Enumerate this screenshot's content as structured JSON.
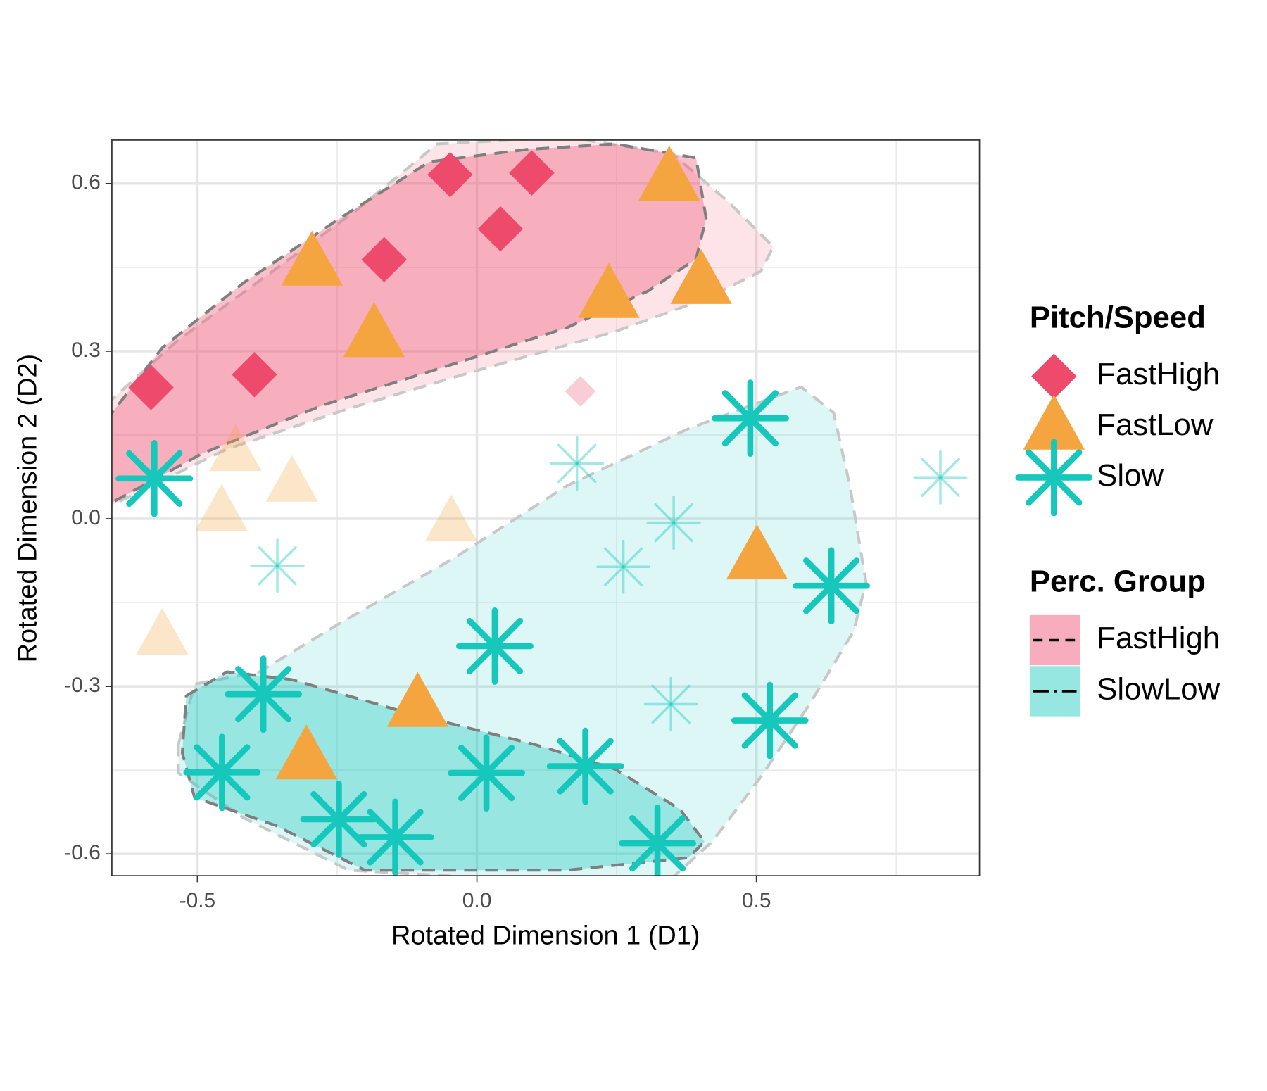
{
  "chart_data": {
    "type": "scatter",
    "x_label": "Rotated Dimension 1 (D1)",
    "y_label": "Rotated Dimension 2 (D2)",
    "xlim": [
      -0.653,
      0.899
    ],
    "ylim": [
      -0.639,
      0.678
    ],
    "xticks": [
      -0.5,
      {
        "value": 0,
        "label": "0.0"
      },
      0.5
    ],
    "yticks": [
      -0.6,
      -0.3,
      {
        "value": 0,
        "label": "0.0"
      },
      0.3,
      0.6
    ],
    "xminor": [
      -0.25,
      0.25,
      0.75
    ],
    "yminor": [
      -0.45,
      -0.15,
      0.15,
      0.45
    ],
    "grid": true,
    "legend_position": "right",
    "legend_title": "Pitch/Speed",
    "group_legend_title": "Perc. Group",
    "series": [
      {
        "name": "FastHigh",
        "shape": "diamond",
        "color": "#ee4a6c",
        "x": [
          -0.583,
          -0.398,
          -0.166,
          -0.048,
          0.042,
          0.098,
          0.185
        ],
        "values": [
          0.235,
          0.258,
          0.464,
          0.616,
          0.519,
          0.619,
          0.228
        ],
        "faded": [
          false,
          false,
          false,
          false,
          false,
          false,
          true
        ]
      },
      {
        "name": "FastLow",
        "shape": "triangle",
        "color": "#f5a540",
        "x": [
          -0.295,
          -0.184,
          0.344,
          0.236,
          0.401,
          0.501,
          -0.106,
          -0.305,
          -0.432,
          -0.331,
          -0.457,
          -0.046,
          -0.563
        ],
        "values": [
          0.458,
          0.33,
          0.61,
          0.4,
          0.425,
          -0.068,
          -0.332,
          -0.426,
          0.12,
          0.065,
          0.013,
          -0.006,
          -0.209
        ],
        "faded": [
          false,
          false,
          false,
          false,
          false,
          false,
          false,
          false,
          true,
          true,
          true,
          true,
          true
        ]
      },
      {
        "name": "Slow",
        "shape": "asterisk",
        "color": "#16c7bc",
        "x": [
          -0.577,
          0.489,
          0.634,
          0.032,
          -0.382,
          0.524,
          -0.456,
          -0.247,
          -0.146,
          0.017,
          0.194,
          0.323,
          0.179,
          0.829,
          0.352,
          0.262,
          -0.357,
          0.347
        ],
        "values": [
          0.072,
          0.18,
          -0.12,
          -0.228,
          -0.314,
          -0.361,
          -0.454,
          -0.538,
          -0.57,
          -0.455,
          -0.443,
          -0.581,
          0.099,
          0.074,
          -0.007,
          -0.086,
          -0.084,
          -0.332
        ],
        "faded": [
          false,
          false,
          false,
          false,
          false,
          false,
          false,
          false,
          false,
          false,
          false,
          false,
          true,
          true,
          true,
          true,
          true,
          true
        ]
      }
    ],
    "groups": [
      {
        "name": "FastHigh",
        "color": "#ee4a6c",
        "linetype": "dashed",
        "hulls": [
          {
            "x": [
              -0.664,
              -0.534,
              -0.375,
              -0.216,
              -0.071,
              0.161,
              0.349,
              0.45,
              0.53,
              0.508,
              0.407,
              0.247,
              0.016,
              -0.23,
              -0.447,
              -0.664
            ],
            "y": [
              0.204,
              0.32,
              0.436,
              0.552,
              0.671,
              0.683,
              0.654,
              0.567,
              0.487,
              0.443,
              0.393,
              0.335,
              0.27,
              0.197,
              0.125,
              0.019
            ]
          },
          {
            "x": [
              -0.664,
              -0.563,
              -0.418,
              -0.245,
              -0.085,
              0.088,
              0.247,
              0.392,
              0.41,
              0.392,
              0.305,
              0.161,
              -0.042,
              -0.274,
              -0.491,
              -0.664
            ],
            "y": [
              0.175,
              0.306,
              0.422,
              0.538,
              0.639,
              0.661,
              0.671,
              0.646,
              0.538,
              0.465,
              0.407,
              0.342,
              0.277,
              0.204,
              0.117,
              0.023
            ]
          }
        ]
      },
      {
        "name": "SlowLow",
        "color": "#16c7bc",
        "linetype": "longdash-dot",
        "hulls": [
          {
            "x": [
              -0.534,
              -0.505,
              -0.389,
              -0.245,
              -0.042,
              0.161,
              0.378,
              0.58,
              0.638,
              0.667,
              0.696,
              0.674,
              0.595,
              0.508,
              0.421,
              0.349,
              0.016,
              -0.23,
              -0.418,
              -0.534
            ],
            "y": [
              -0.404,
              -0.296,
              -0.274,
              -0.187,
              -0.071,
              0.059,
              0.161,
              0.236,
              0.19,
              0.059,
              -0.114,
              -0.201,
              -0.332,
              -0.462,
              -0.578,
              -0.643,
              -0.643,
              -0.629,
              -0.535,
              -0.455
            ]
          },
          {
            "x": [
              -0.52,
              -0.447,
              -0.331,
              -0.129,
              0.103,
              0.247,
              0.363,
              0.407,
              0.378,
              0.161,
              -0.201,
              -0.36,
              -0.505,
              -0.527
            ],
            "y": [
              -0.317,
              -0.274,
              -0.288,
              -0.346,
              -0.404,
              -0.448,
              -0.52,
              -0.578,
              -0.607,
              -0.629,
              -0.629,
              -0.549,
              -0.499,
              -0.419
            ]
          }
        ]
      }
    ]
  }
}
